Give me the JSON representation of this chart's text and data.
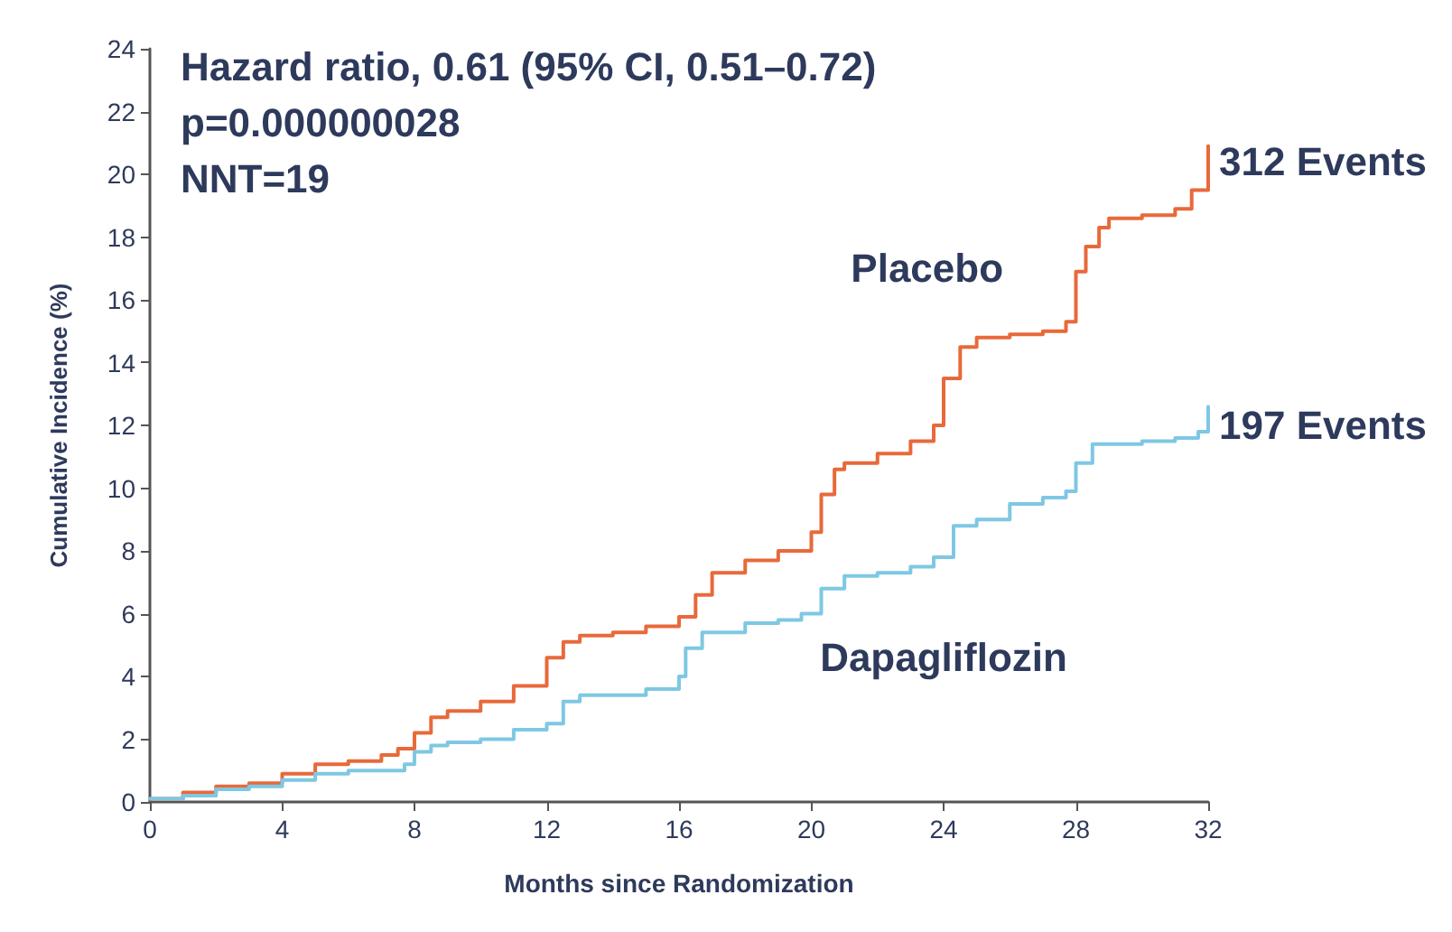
{
  "chart_data": {
    "type": "step",
    "xlabel": "Months since Randomization",
    "ylabel": "Cumulative Incidence (%)",
    "xlim": [
      0,
      32
    ],
    "xticks": [
      0,
      4,
      8,
      12,
      16,
      20,
      24,
      28,
      32
    ],
    "ylim": [
      0,
      24
    ],
    "yticks": [
      0,
      2,
      4,
      6,
      8,
      10,
      12,
      14,
      16,
      18,
      20,
      22,
      24
    ],
    "grid": false,
    "legend": false,
    "marker": "none",
    "line_style": "solid",
    "series": [
      {
        "name": "Placebo",
        "color": "#e8693a",
        "x": [
          0,
          1,
          2,
          3,
          4,
          5,
          6,
          7,
          7.5,
          8,
          8.5,
          9,
          10,
          11,
          12,
          12.5,
          13,
          14,
          15,
          16,
          16.5,
          17,
          18,
          19,
          20,
          20.3,
          20.7,
          21,
          22,
          23,
          23.7,
          24,
          24.5,
          25,
          26,
          27,
          27.7,
          28,
          28.3,
          28.7,
          29,
          30,
          31,
          31.5,
          32
        ],
        "values": [
          0.1,
          0.3,
          0.5,
          0.6,
          0.9,
          1.2,
          1.3,
          1.5,
          1.7,
          2.2,
          2.7,
          2.9,
          3.2,
          3.7,
          4.6,
          5.1,
          5.3,
          5.4,
          5.6,
          5.9,
          6.6,
          7.3,
          7.7,
          8,
          8.6,
          9.8,
          10.6,
          10.8,
          11.1,
          11.5,
          12,
          13.5,
          14.5,
          14.8,
          14.9,
          15,
          15.3,
          16.9,
          17.7,
          18.3,
          18.6,
          18.7,
          18.9,
          19.5,
          20.9
        ]
      },
      {
        "name": "Dapagliflozin",
        "color": "#7ec8e3",
        "x": [
          0,
          1,
          2,
          3,
          4,
          5,
          6,
          7,
          7.7,
          8,
          8.5,
          9,
          10,
          11,
          12,
          12.5,
          13,
          14,
          15,
          16,
          16.2,
          16.7,
          17,
          18,
          19,
          19.7,
          20.3,
          21,
          22,
          23,
          23.7,
          24.3,
          25,
          26,
          27,
          27.7,
          28,
          28.5,
          30,
          31,
          31.7,
          32
        ],
        "values": [
          0.1,
          0.2,
          0.4,
          0.5,
          0.7,
          0.9,
          1,
          1,
          1.2,
          1.6,
          1.8,
          1.9,
          2,
          2.3,
          2.5,
          3.2,
          3.4,
          3.4,
          3.6,
          4,
          4.9,
          5.4,
          5.4,
          5.7,
          5.8,
          6,
          6.8,
          7.2,
          7.3,
          7.5,
          7.8,
          8.8,
          9,
          9.5,
          9.7,
          9.9,
          10.8,
          11.4,
          11.5,
          11.6,
          11.8,
          12.6
        ]
      }
    ],
    "annotations": [
      "Hazard ratio, 0.61 (95% CI, 0.51–0.72)",
      "p=0.000000028",
      "NNT=19",
      {
        "text": "312 Events",
        "x": 32,
        "y": 20.4
      },
      {
        "text": "197 Events",
        "x": 32,
        "y": 12
      }
    ]
  }
}
